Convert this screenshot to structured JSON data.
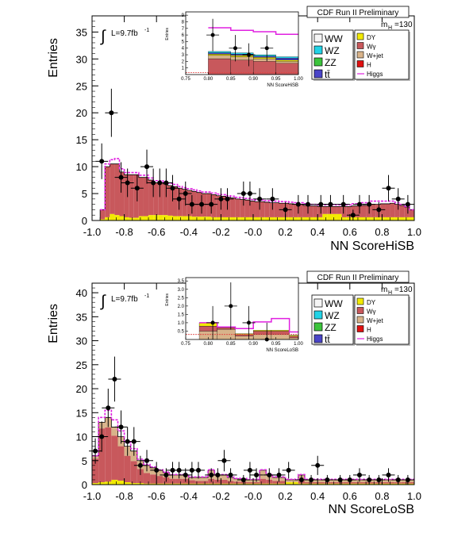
{
  "colors": {
    "WW": "#f5f5f5",
    "WZ": "#22d3e6",
    "ZZ": "#3cc43c",
    "ttbar": "#4a45c8",
    "DY": "#f2ea00",
    "Wgamma": "#c8585c",
    "Wjet": "#d8b38a",
    "H": "#e01010",
    "Higgs": "#e020e0",
    "data": "#000000"
  },
  "chart_data": [
    {
      "type": "histogram",
      "panel": "top",
      "title": "CDF Run II Preliminary",
      "xlabel": "NN ScoreHiSB",
      "ylabel": "Entries",
      "lumi_label": "L=9.7fb",
      "lumi_sup": "-1",
      "mass_label": "m",
      "mass_sub": "H",
      "mass_value": "=130",
      "xlim": [
        -1.0,
        1.0
      ],
      "ylim": [
        0,
        38
      ],
      "xticks": [
        "-1.0",
        "-0.8",
        "-0.6",
        "-0.4",
        "-0.2",
        "-0.0",
        "0.2",
        "0.4",
        "0.6",
        "0.8",
        "1.0"
      ],
      "yticks": [
        "0",
        "5",
        "10",
        "15",
        "20",
        "25",
        "30",
        "35"
      ],
      "legend_left": [
        "WW",
        "WZ",
        "ZZ",
        "tt̄"
      ],
      "legend_right": [
        "DY",
        "Wγ",
        "W+jet",
        "H",
        "Higgs"
      ],
      "bin_edges": [
        -0.95,
        -0.92,
        -0.89,
        -0.86,
        -0.83,
        -0.8,
        -0.77,
        -0.74,
        -0.71,
        -0.68,
        -0.65,
        -0.62,
        -0.59,
        -0.56,
        -0.53,
        -0.5,
        -0.47,
        -0.44,
        -0.41,
        -0.38,
        -0.35,
        -0.32,
        -0.29,
        -0.26,
        -0.23,
        -0.2,
        -0.17,
        -0.14,
        -0.11,
        -0.08,
        -0.05,
        -0.02,
        0.01,
        0.04,
        0.07,
        0.1,
        0.13,
        0.16,
        0.19,
        0.22,
        0.25,
        0.28,
        0.31,
        0.34,
        0.37,
        0.4,
        0.43,
        0.46,
        0.49,
        0.52,
        0.55,
        0.58,
        0.61,
        0.64,
        0.67,
        0.7,
        0.73,
        0.76,
        0.79,
        0.82,
        0.85,
        0.88,
        0.91,
        0.94,
        0.97,
        1.0
      ],
      "bkg_total": [
        2,
        10,
        10.5,
        10.5,
        9,
        8.5,
        8.5,
        8.5,
        8,
        8,
        7.5,
        7,
        7,
        6.8,
        6.5,
        6.3,
        6,
        5.8,
        5.6,
        5.4,
        5.2,
        5,
        5,
        4.8,
        4.6,
        4.5,
        4.3,
        4.2,
        4,
        3.9,
        3.8,
        3.6,
        3.5,
        3.5,
        3.4,
        3.3,
        3.3,
        3.2,
        3.2,
        3.1,
        3,
        3,
        2.8,
        2.7,
        2.7,
        2.6,
        2.6,
        2.6,
        2.6,
        2.6,
        2.6,
        2.6,
        2.7,
        2.7,
        2.8,
        2.8,
        3,
        3,
        3.1,
        3.1,
        3.2,
        3,
        2.8,
        2.5,
        2
      ],
      "dy_frac_h": [
        0.2,
        0.6,
        1.2,
        1,
        0.8,
        0.6,
        0.5,
        0.5,
        0.8,
        0.8,
        1,
        1,
        1,
        1,
        0.9,
        0.8,
        0.8,
        0.8,
        0.8,
        0.7,
        0.7,
        0.7,
        0.7,
        0.6,
        0.6,
        0.6,
        0.6,
        0.6,
        0.6,
        0.6,
        0.6,
        0.6,
        0.6,
        0.6,
        0.6,
        0.6,
        0.6,
        0.6,
        0.6,
        0.6,
        0.6,
        0.6,
        0.6,
        0.6,
        0.6,
        0.6,
        1.2,
        1.2,
        1.2,
        1.2,
        0.6,
        0.6,
        0.6,
        0.6,
        0.6,
        0.6,
        0.6,
        0.6,
        0.6,
        0.6,
        0.6,
        0.6,
        0.6,
        0.6,
        0.6
      ],
      "signal": [
        0,
        0.5,
        0.8,
        1,
        0.6,
        0.4,
        0.4,
        0.4,
        0.4,
        0.4,
        0.4,
        0.4,
        0.4,
        0.4,
        0.4,
        0.4,
        0.3,
        0.3,
        0.3,
        0.3,
        0.3,
        0.3,
        0.3,
        0.3,
        0.3,
        0.3,
        0.3,
        0.3,
        0.3,
        0.3,
        0.3,
        0.3,
        0.3,
        0.3,
        0.3,
        0.3,
        0.3,
        0.3,
        0.3,
        0.3,
        0.3,
        0.3,
        0.3,
        0.3,
        0.3,
        0.3,
        0.3,
        0.3,
        0.3,
        0.3,
        0.3,
        0.3,
        0.4,
        0.4,
        0.5,
        0.5,
        0.6,
        0.6,
        0.5,
        0.5,
        0.4,
        0.3,
        0.2,
        0.1,
        0
      ],
      "data_x": [
        -0.94,
        -0.88,
        -0.82,
        -0.78,
        -0.72,
        -0.66,
        -0.62,
        -0.58,
        -0.54,
        -0.5,
        -0.46,
        -0.42,
        -0.38,
        -0.32,
        -0.26,
        -0.2,
        -0.16,
        -0.06,
        -0.02,
        0.04,
        0.12,
        0.2,
        0.28,
        0.34,
        0.42,
        0.48,
        0.56,
        0.62,
        0.66,
        0.72,
        0.78,
        0.84,
        0.9,
        0.96
      ],
      "data_y": [
        11,
        20,
        8,
        7,
        6,
        10,
        7,
        7,
        7,
        6,
        4,
        5,
        3,
        3,
        3,
        4,
        4,
        5,
        5,
        4,
        4,
        2,
        3,
        3,
        3,
        3,
        3,
        1,
        3,
        3,
        2,
        6,
        4,
        3
      ],
      "inset": {
        "xlabel": "NN ScoreHiSB",
        "ylabel": "Entries",
        "xlim": [
          0.75,
          1.0
        ],
        "ylim": [
          0,
          9.5
        ],
        "xticks": [
          "0.75",
          "0.80",
          "0.85",
          "0.90",
          "0.95",
          "1.00"
        ],
        "yticks": [
          "1",
          "2",
          "3",
          "4",
          "5",
          "6",
          "7",
          "8",
          "9"
        ],
        "bin_edges": [
          0.8,
          0.85,
          0.9,
          0.95,
          1.0
        ],
        "layers": [
          {
            "key": "Wgamma",
            "values": [
              2.4,
              2.2,
              2.0,
              1.7
            ]
          },
          {
            "key": "Wjet",
            "values": [
              0.5,
              0.5,
              0.4,
              0.3
            ]
          },
          {
            "key": "DY",
            "values": [
              0.2,
              0.2,
              0.2,
              0.2
            ]
          },
          {
            "key": "ttbar",
            "values": [
              0.2,
              0.2,
              0.2,
              0.3
            ]
          },
          {
            "key": "WZ",
            "values": [
              0.2,
              0.2,
              0.2,
              0.2
            ]
          }
        ],
        "signal": [
          3.6,
          3.4,
          3.5,
          3.4
        ],
        "data_x": [
          0.81,
          0.86,
          0.89,
          0.93
        ],
        "data_y": [
          6,
          4,
          3,
          4
        ]
      }
    },
    {
      "type": "histogram",
      "panel": "bottom",
      "title": "CDF Run II Preliminary",
      "xlabel": "NN ScoreLoSB",
      "ylabel": "Entries",
      "lumi_label": "L=9.7fb",
      "lumi_sup": "-1",
      "mass_label": "m",
      "mass_sub": "H",
      "mass_value": "=130",
      "xlim": [
        -1.0,
        1.0
      ],
      "ylim": [
        0,
        42
      ],
      "xticks": [
        "-1.0",
        "-0.8",
        "-0.6",
        "-0.4",
        "-0.2",
        "-0.0",
        "0.2",
        "0.4",
        "0.6",
        "0.8",
        "1.0"
      ],
      "yticks": [
        "0",
        "5",
        "10",
        "15",
        "20",
        "25",
        "30",
        "35",
        "40"
      ],
      "legend_left": [
        "WW",
        "WZ",
        "ZZ",
        "tt̄"
      ],
      "legend_right": [
        "DY",
        "Wγ",
        "W+jet",
        "H",
        "Higgs"
      ],
      "bin_edges": [
        -1.0,
        -0.96,
        -0.92,
        -0.88,
        -0.84,
        -0.8,
        -0.76,
        -0.72,
        -0.68,
        -0.64,
        -0.6,
        -0.56,
        -0.52,
        -0.48,
        -0.44,
        -0.4,
        -0.36,
        -0.32,
        -0.28,
        -0.24,
        -0.2,
        -0.16,
        -0.12,
        -0.08,
        -0.04,
        0,
        0.04,
        0.08,
        0.12,
        0.16,
        0.2,
        0.24,
        0.28,
        0.32,
        0.36,
        0.4,
        0.44,
        0.48,
        0.52,
        0.56,
        0.6,
        0.64,
        0.68,
        0.72,
        0.76,
        0.8,
        0.84,
        0.88,
        0.92,
        0.96,
        1.0
      ],
      "bkg_total": [
        6,
        13,
        14,
        12,
        10,
        8,
        7,
        5,
        4,
        3.5,
        3,
        2.5,
        2,
        2,
        2,
        1.5,
        1.5,
        1.5,
        3,
        2,
        2,
        1.5,
        1.2,
        1.2,
        1,
        1,
        3,
        2,
        1.5,
        1.5,
        1,
        1,
        2,
        1,
        1,
        1,
        1,
        1,
        1,
        1,
        1,
        1,
        1,
        1,
        1,
        1,
        1,
        1,
        1,
        1
      ],
      "wjet_frac": [
        0.1,
        0.1,
        0.15,
        0.15,
        0.2,
        0.25,
        0.3,
        0.35,
        0.4,
        0.4,
        0.4,
        0.4,
        0.4,
        0.4,
        0.4,
        0.4,
        0.5,
        0.5,
        0.6,
        0.5,
        0.5,
        0.5,
        0.5,
        0.5,
        0.5,
        0.5,
        0.6,
        0.5,
        0.5,
        0.5,
        0.5,
        0.5,
        0.6,
        0.5,
        0.5,
        0.5,
        0.5,
        0.5,
        0.5,
        0.5,
        0.5,
        0.5,
        0.5,
        0.5,
        0.5,
        0.5,
        0.5,
        0.5,
        0.5,
        0.5
      ],
      "dy_h": [
        0.3,
        0.5,
        0.6,
        1,
        0.8,
        0.5,
        0.3,
        0.3,
        0.2,
        0.2,
        0.2,
        0.2,
        0.2,
        0.2,
        0.2,
        0.2,
        0.2,
        0.2,
        0.2,
        0.2,
        0.2,
        0.2,
        0.2,
        0.2,
        0.2,
        0.2,
        0.2,
        0.2,
        0.2,
        0.2,
        0.5,
        0.5,
        0.2,
        0.2,
        0.2,
        0.2,
        0.2,
        0.2,
        0.2,
        0.2,
        0.2,
        0.2,
        0.2,
        0.2,
        0.2,
        0.2,
        0.2,
        0.2,
        0.2,
        0.2
      ],
      "signal": [
        0,
        1,
        1.5,
        1.5,
        1.2,
        0.8,
        0.5,
        0.3,
        0.2,
        0.2,
        0.1,
        0.1,
        0.1,
        0.1,
        0.1,
        0.1,
        0.1,
        0.1,
        0.1,
        0.1,
        0.1,
        0.1,
        0.1,
        0.1,
        0.1,
        0.1,
        0.1,
        0.1,
        0.1,
        0.1,
        0.1,
        0.1,
        0.1,
        0.1,
        0.1,
        0.1,
        0.1,
        0.1,
        0.1,
        0.1,
        0.1,
        0.1,
        0.1,
        0.1,
        0.1,
        0.1,
        0.1,
        0.1,
        0.1,
        0.1
      ],
      "data_x": [
        -0.98,
        -0.94,
        -0.9,
        -0.86,
        -0.82,
        -0.78,
        -0.74,
        -0.7,
        -0.66,
        -0.6,
        -0.54,
        -0.5,
        -0.46,
        -0.42,
        -0.38,
        -0.34,
        -0.26,
        -0.22,
        -0.18,
        -0.14,
        -0.06,
        -0.02,
        0.02,
        0.1,
        0.16,
        0.22,
        0.3,
        0.36,
        0.4,
        0.46,
        0.54,
        0.6,
        0.66,
        0.72,
        0.78,
        0.84,
        0.9,
        0.96
      ],
      "data_y": [
        7,
        10,
        16,
        22,
        12,
        9,
        9,
        4,
        5,
        3,
        2,
        3,
        3,
        2,
        3,
        3,
        2,
        2,
        5,
        2,
        1,
        3,
        2,
        2,
        2,
        3,
        1,
        1,
        4,
        1,
        1,
        1,
        2,
        1,
        1,
        2,
        1,
        1
      ],
      "inset": {
        "xlabel": "NN ScoreLoSB",
        "ylabel": "Entries",
        "xlim": [
          0.75,
          1.0
        ],
        "ylim": [
          0,
          3.7
        ],
        "xticks": [
          "0.75",
          "0.80",
          "0.85",
          "0.90",
          "0.95",
          "1.00"
        ],
        "yticks": [
          "0.5",
          "1.0",
          "1.5",
          "2.0",
          "2.5",
          "3.0",
          "3.5"
        ],
        "bin_edges": [
          0.78,
          0.82,
          0.86,
          0.9,
          0.94,
          0.98,
          1.0
        ],
        "layers": [
          {
            "key": "Wjet",
            "values": [
              0.5,
              0.6,
              0.2,
              0.3,
              0.3,
              0.1
            ]
          },
          {
            "key": "Wgamma",
            "values": [
              0.3,
              0.1,
              0.1,
              0.2,
              0.2,
              0.1
            ]
          },
          {
            "key": "DY",
            "values": [
              0.2,
              0.05,
              0.05,
              0.05,
              0.05,
              0.05
            ]
          }
        ],
        "signal": [
          0,
          0,
          0.3,
          0.5,
          0.7,
          0.2
        ],
        "data_x": [
          0.81,
          0.85,
          0.89,
          0.93
        ],
        "data_y": [
          1,
          2,
          1,
          0
        ]
      }
    }
  ]
}
